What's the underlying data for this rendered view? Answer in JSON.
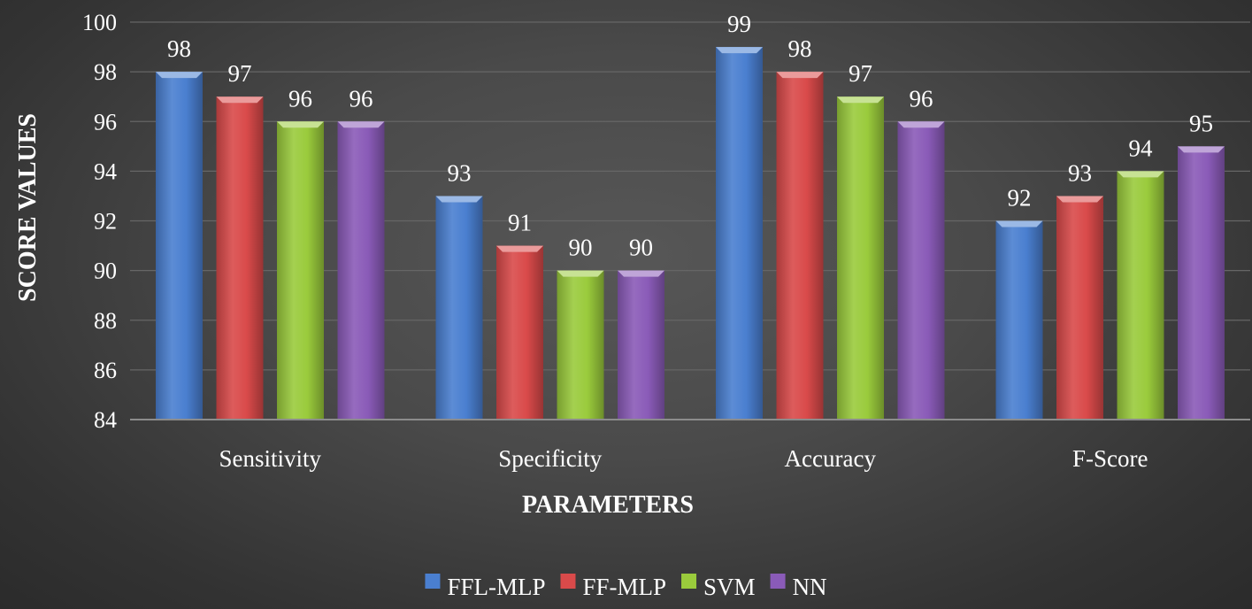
{
  "chart_data": {
    "type": "bar",
    "title": "",
    "xlabel": "PARAMETERS",
    "ylabel": "SCORE VALUES",
    "categories": [
      "Sensitivity",
      "Specificity",
      "Accuracy",
      "F-Score"
    ],
    "series": [
      {
        "name": "FFL-MLP",
        "values": [
          98,
          93,
          99,
          92
        ],
        "color": "#4a7fd0"
      },
      {
        "name": "FF-MLP",
        "values": [
          97,
          91,
          98,
          93
        ],
        "color": "#d94a4a"
      },
      {
        "name": "SVM",
        "values": [
          96,
          90,
          97,
          94
        ],
        "color": "#9acb3c"
      },
      {
        "name": "NN",
        "values": [
          96,
          90,
          96,
          95
        ],
        "color": "#8a5bb8"
      }
    ],
    "ylim": [
      84,
      100
    ],
    "yticks": [
      84,
      86,
      88,
      90,
      92,
      94,
      96,
      98,
      100
    ],
    "grid": true,
    "legend": "bottom-center"
  }
}
